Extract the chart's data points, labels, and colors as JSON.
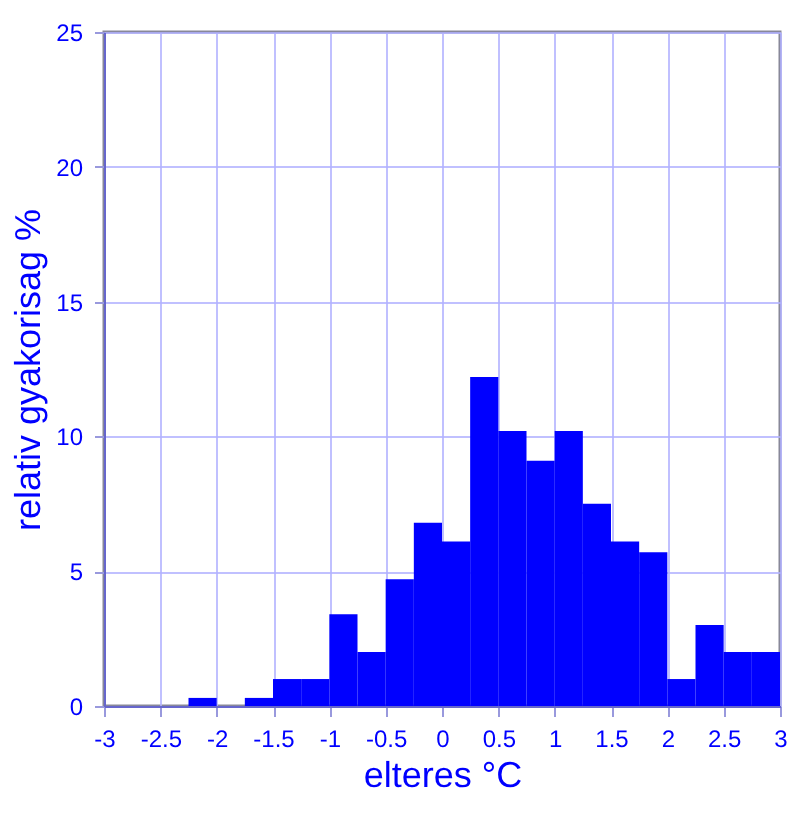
{
  "chart_data": {
    "type": "histogram",
    "xlabel": "elteres °C",
    "ylabel": "relativ gyakorisag %",
    "bins": [
      -3,
      -2.75,
      -2.5,
      -2.25,
      -2,
      -1.75,
      -1.5,
      -1.25,
      -1,
      -0.75,
      -0.5,
      -0.25,
      0,
      0.25,
      0.5,
      0.75,
      1,
      1.25,
      1.5,
      1.75,
      2,
      2.25,
      2.5,
      2.75,
      3
    ],
    "values": [
      0,
      0,
      0,
      0.3,
      0,
      0.3,
      1,
      1,
      3.4,
      2,
      4.7,
      6.8,
      6.1,
      12.2,
      10.2,
      9.1,
      10.2,
      7.5,
      6.1,
      5.7,
      1,
      3,
      2,
      2
    ],
    "color": "#0000ff",
    "xlim": [
      -3,
      3
    ],
    "xticks": [
      -3,
      -2.5,
      -2,
      -1.5,
      -1,
      -0.5,
      0,
      0.5,
      1,
      1.5,
      2,
      2.5,
      3
    ],
    "ylim": [
      0,
      25
    ],
    "yticks": [
      0,
      5,
      10,
      15,
      20,
      25
    ],
    "grid": true
  }
}
